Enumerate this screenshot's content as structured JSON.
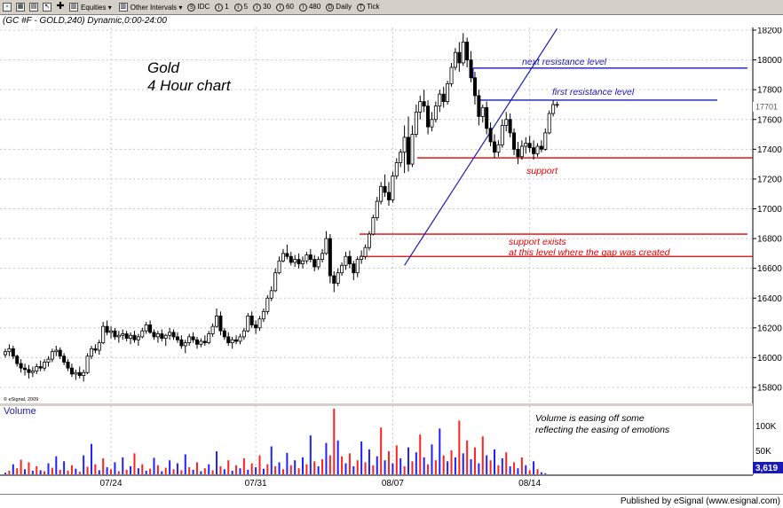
{
  "toolbar": {
    "items": [
      {
        "name": "equities-dropdown",
        "label": "Equities"
      },
      {
        "name": "other-intervals-dropdown",
        "label": "Other Intervals"
      },
      {
        "name": "interval-idc",
        "label": "IDC",
        "badge": "S"
      },
      {
        "name": "interval-1",
        "label": "1",
        "badge": "I"
      },
      {
        "name": "interval-5",
        "label": "5",
        "badge": "I"
      },
      {
        "name": "interval-30",
        "label": "30",
        "badge": "I"
      },
      {
        "name": "interval-60",
        "label": "60",
        "badge": "I"
      },
      {
        "name": "interval-480",
        "label": "480",
        "badge": "I"
      },
      {
        "name": "interval-daily",
        "label": "Daily",
        "badge": "D"
      },
      {
        "name": "interval-tick",
        "label": "Tick",
        "badge": "T"
      }
    ]
  },
  "header": {
    "title": "(GC #F - GOLD,240) Dynamic,0:00-24:00"
  },
  "footer": {
    "publisher": "Published by eSignal (www.esignal.com)"
  },
  "chart_data": {
    "type": "candlestick",
    "title": "Gold",
    "subtitle": "4 Hour chart",
    "copyright": "© eSignal, 2009",
    "last_price": "17701",
    "price_axis": {
      "ylim": [
        15680,
        18250
      ],
      "ticks": [
        "18200",
        "18000",
        "17800",
        "17600",
        "17400",
        "17200",
        "17000",
        "16800",
        "16600",
        "16400",
        "16200",
        "16000",
        "15800"
      ]
    },
    "dates": [
      "07/24",
      "07/31",
      "08/07",
      "08/14"
    ],
    "volume_panel": {
      "label": "Volume",
      "ticks": [
        "100K",
        "50K"
      ],
      "last_value": "3,619",
      "ylim": [
        0,
        150000
      ]
    },
    "horizontal_lines": [
      {
        "name": "next-resistance",
        "label": "next resistance level",
        "price": 17945,
        "color": "#1a1ab8"
      },
      {
        "name": "first-resistance",
        "label": "first resistance level",
        "price": 17730,
        "color": "#1a1ab8"
      },
      {
        "name": "support",
        "label": "support",
        "price": 17342,
        "color": "#e00000"
      },
      {
        "name": "gap-support-upper",
        "label": "",
        "price": 16830,
        "color": "#e00000"
      },
      {
        "name": "gap-support-lower",
        "label": "",
        "price": 16680,
        "color": "#e00000"
      }
    ],
    "annotations": {
      "support_exists": [
        "support exists",
        "at this level where the gap was created"
      ],
      "volume_note": [
        "Volume is easing off some",
        "reflecting the easing of emotions"
      ]
    },
    "trendline": {
      "from_bar": 102,
      "from_price": 16620,
      "to_bar": 141,
      "to_price": 18210,
      "color": "#1a1ab8"
    },
    "bars": [
      [
        16020,
        16060,
        16000,
        16040
      ],
      [
        16040,
        16090,
        16010,
        16060
      ],
      [
        16060,
        16080,
        15990,
        16010
      ],
      [
        16010,
        16020,
        15940,
        15960
      ],
      [
        15960,
        15990,
        15900,
        15930
      ],
      [
        15930,
        15960,
        15880,
        15920
      ],
      [
        15920,
        15950,
        15860,
        15900
      ],
      [
        15900,
        15940,
        15870,
        15910
      ],
      [
        15910,
        15960,
        15890,
        15940
      ],
      [
        15940,
        15980,
        15910,
        15930
      ],
      [
        15930,
        15990,
        15910,
        15970
      ],
      [
        15970,
        16010,
        15940,
        15990
      ],
      [
        15990,
        16060,
        15970,
        16040
      ],
      [
        16040,
        16080,
        16010,
        16050
      ],
      [
        16050,
        16070,
        15990,
        16010
      ],
      [
        16010,
        16030,
        15950,
        15970
      ],
      [
        15970,
        15990,
        15910,
        15930
      ],
      [
        15930,
        15960,
        15870,
        15890
      ],
      [
        15890,
        15920,
        15850,
        15900
      ],
      [
        15900,
        15940,
        15860,
        15880
      ],
      [
        15880,
        15920,
        15840,
        15900
      ],
      [
        15900,
        16030,
        15890,
        16010
      ],
      [
        16010,
        16080,
        15990,
        16060
      ],
      [
        16060,
        16090,
        16030,
        16050
      ],
      [
        16050,
        16120,
        16020,
        16100
      ],
      [
        16100,
        16240,
        16090,
        16210
      ],
      [
        16210,
        16250,
        16150,
        16170
      ],
      [
        16170,
        16210,
        16130,
        16180
      ],
      [
        16180,
        16200,
        16120,
        16140
      ],
      [
        16140,
        16180,
        16100,
        16150
      ],
      [
        16150,
        16190,
        16120,
        16160
      ],
      [
        16160,
        16180,
        16110,
        16130
      ],
      [
        16130,
        16170,
        16090,
        16150
      ],
      [
        16150,
        16180,
        16100,
        16120
      ],
      [
        16120,
        16160,
        16080,
        16140
      ],
      [
        16140,
        16200,
        16130,
        16180
      ],
      [
        16180,
        16240,
        16160,
        16220
      ],
      [
        16220,
        16250,
        16160,
        16170
      ],
      [
        16170,
        16190,
        16120,
        16140
      ],
      [
        16140,
        16180,
        16100,
        16160
      ],
      [
        16160,
        16190,
        16110,
        16130
      ],
      [
        16130,
        16160,
        16080,
        16150
      ],
      [
        16150,
        16200,
        16120,
        16170
      ],
      [
        16170,
        16190,
        16120,
        16140
      ],
      [
        16140,
        16170,
        16100,
        16120
      ],
      [
        16120,
        16150,
        16060,
        16080
      ],
      [
        16080,
        16120,
        16030,
        16100
      ],
      [
        16100,
        16160,
        16080,
        16140
      ],
      [
        16140,
        16170,
        16100,
        16120
      ],
      [
        16120,
        16140,
        16060,
        16090
      ],
      [
        16090,
        16130,
        16070,
        16110
      ],
      [
        16110,
        16150,
        16080,
        16100
      ],
      [
        16100,
        16180,
        16090,
        16160
      ],
      [
        16160,
        16230,
        16140,
        16210
      ],
      [
        16210,
        16330,
        16200,
        16280
      ],
      [
        16280,
        16310,
        16150,
        16180
      ],
      [
        16180,
        16200,
        16120,
        16140
      ],
      [
        16140,
        16170,
        16080,
        16100
      ],
      [
        16100,
        16140,
        16060,
        16120
      ],
      [
        16120,
        16150,
        16090,
        16110
      ],
      [
        16110,
        16160,
        16090,
        16140
      ],
      [
        16140,
        16200,
        16120,
        16180
      ],
      [
        16180,
        16300,
        16170,
        16280
      ],
      [
        16280,
        16310,
        16200,
        16220
      ],
      [
        16220,
        16250,
        16160,
        16200
      ],
      [
        16200,
        16280,
        16180,
        16260
      ],
      [
        16260,
        16330,
        16240,
        16310
      ],
      [
        16310,
        16420,
        16290,
        16400
      ],
      [
        16400,
        16480,
        16380,
        16450
      ],
      [
        16450,
        16600,
        16440,
        16570
      ],
      [
        16570,
        16680,
        16560,
        16650
      ],
      [
        16650,
        16730,
        16640,
        16700
      ],
      [
        16700,
        16760,
        16660,
        16680
      ],
      [
        16680,
        16710,
        16620,
        16640
      ],
      [
        16640,
        16690,
        16610,
        16660
      ],
      [
        16660,
        16700,
        16600,
        16630
      ],
      [
        16630,
        16680,
        16600,
        16650
      ],
      [
        16650,
        16710,
        16630,
        16690
      ],
      [
        16690,
        16730,
        16640,
        16660
      ],
      [
        16660,
        16690,
        16580,
        16610
      ],
      [
        16610,
        16680,
        16590,
        16660
      ],
      [
        16660,
        16730,
        16640,
        16700
      ],
      [
        16700,
        16850,
        16690,
        16800
      ],
      [
        16800,
        16830,
        16500,
        16550
      ],
      [
        16550,
        16580,
        16440,
        16500
      ],
      [
        16500,
        16600,
        16480,
        16570
      ],
      [
        16570,
        16640,
        16550,
        16620
      ],
      [
        16620,
        16710,
        16590,
        16680
      ],
      [
        16680,
        16720,
        16600,
        16630
      ],
      [
        16630,
        16650,
        16520,
        16570
      ],
      [
        16570,
        16680,
        16540,
        16660
      ],
      [
        16660,
        16720,
        16630,
        16680
      ],
      [
        16680,
        16760,
        16660,
        16740
      ],
      [
        16740,
        16850,
        16720,
        16830
      ],
      [
        16830,
        16960,
        16820,
        16940
      ],
      [
        16940,
        17080,
        16920,
        17050
      ],
      [
        17050,
        17180,
        17030,
        17150
      ],
      [
        17150,
        17230,
        17080,
        17110
      ],
      [
        17110,
        17180,
        17020,
        17060
      ],
      [
        17060,
        17250,
        17040,
        17220
      ],
      [
        17220,
        17340,
        17200,
        17310
      ],
      [
        17310,
        17400,
        17280,
        17380
      ],
      [
        17380,
        17560,
        17240,
        17480
      ],
      [
        17480,
        17620,
        17250,
        17300
      ],
      [
        17300,
        17560,
        17280,
        17500
      ],
      [
        17500,
        17700,
        17480,
        17650
      ],
      [
        17650,
        17760,
        17600,
        17720
      ],
      [
        17720,
        17800,
        17650,
        17690
      ],
      [
        17690,
        17730,
        17500,
        17550
      ],
      [
        17550,
        17650,
        17520,
        17600
      ],
      [
        17600,
        17720,
        17580,
        17690
      ],
      [
        17690,
        17800,
        17650,
        17770
      ],
      [
        17770,
        17820,
        17680,
        17720
      ],
      [
        17720,
        17860,
        17700,
        17840
      ],
      [
        17840,
        17980,
        17820,
        17950
      ],
      [
        17950,
        18080,
        17930,
        18050
      ],
      [
        18050,
        18120,
        17920,
        17980
      ],
      [
        17980,
        18180,
        17960,
        18120
      ],
      [
        18120,
        18150,
        17950,
        18000
      ],
      [
        18000,
        18060,
        17850,
        17880
      ],
      [
        17880,
        17920,
        17700,
        17760
      ],
      [
        17760,
        17800,
        17560,
        17620
      ],
      [
        17620,
        17700,
        17580,
        17680
      ],
      [
        17680,
        17720,
        17500,
        17540
      ],
      [
        17540,
        17580,
        17420,
        17450
      ],
      [
        17450,
        17500,
        17340,
        17380
      ],
      [
        17380,
        17460,
        17350,
        17430
      ],
      [
        17430,
        17600,
        17410,
        17560
      ],
      [
        17560,
        17650,
        17520,
        17600
      ],
      [
        17600,
        17640,
        17480,
        17510
      ],
      [
        17510,
        17540,
        17360,
        17400
      ],
      [
        17400,
        17450,
        17300,
        17350
      ],
      [
        17350,
        17460,
        17330,
        17420
      ],
      [
        17420,
        17480,
        17370,
        17440
      ],
      [
        17440,
        17490,
        17380,
        17410
      ],
      [
        17410,
        17460,
        17330,
        17370
      ],
      [
        17370,
        17440,
        17350,
        17420
      ],
      [
        17420,
        17460,
        17380,
        17400
      ],
      [
        17400,
        17540,
        17390,
        17510
      ],
      [
        17510,
        17660,
        17500,
        17640
      ],
      [
        17640,
        17730,
        17620,
        17700
      ],
      [
        17700,
        17720,
        17680,
        17701
      ]
    ],
    "volume": [
      [
        5000,
        "b"
      ],
      [
        9000,
        "r"
      ],
      [
        22000,
        "b"
      ],
      [
        14000,
        "r"
      ],
      [
        31000,
        "r"
      ],
      [
        12000,
        "b"
      ],
      [
        26000,
        "r"
      ],
      [
        9000,
        "b"
      ],
      [
        18000,
        "r"
      ],
      [
        10000,
        "b"
      ],
      [
        8000,
        "r"
      ],
      [
        24000,
        "b"
      ],
      [
        15000,
        "r"
      ],
      [
        38000,
        "b"
      ],
      [
        11000,
        "r"
      ],
      [
        28000,
        "b"
      ],
      [
        9000,
        "r"
      ],
      [
        20000,
        "r"
      ],
      [
        13000,
        "b"
      ],
      [
        7000,
        "r"
      ],
      [
        40000,
        "b"
      ],
      [
        17000,
        "r"
      ],
      [
        63000,
        "b"
      ],
      [
        22000,
        "r"
      ],
      [
        10000,
        "b"
      ],
      [
        34000,
        "r"
      ],
      [
        16000,
        "b"
      ],
      [
        12000,
        "r"
      ],
      [
        26000,
        "b"
      ],
      [
        8000,
        "r"
      ],
      [
        36000,
        "b"
      ],
      [
        11000,
        "r"
      ],
      [
        18000,
        "b"
      ],
      [
        44000,
        "r"
      ],
      [
        14000,
        "b"
      ],
      [
        22000,
        "r"
      ],
      [
        9000,
        "b"
      ],
      [
        13000,
        "r"
      ],
      [
        35000,
        "b"
      ],
      [
        20000,
        "r"
      ],
      [
        8000,
        "b"
      ],
      [
        15000,
        "r"
      ],
      [
        30000,
        "b"
      ],
      [
        12000,
        "r"
      ],
      [
        24000,
        "b"
      ],
      [
        10000,
        "r"
      ],
      [
        42000,
        "b"
      ],
      [
        16000,
        "r"
      ],
      [
        11000,
        "b"
      ],
      [
        26000,
        "r"
      ],
      [
        8000,
        "b"
      ],
      [
        14000,
        "r"
      ],
      [
        22000,
        "b"
      ],
      [
        10000,
        "r"
      ],
      [
        48000,
        "b"
      ],
      [
        18000,
        "r"
      ],
      [
        12000,
        "b"
      ],
      [
        30000,
        "r"
      ],
      [
        9000,
        "b"
      ],
      [
        20000,
        "r"
      ],
      [
        14000,
        "b"
      ],
      [
        34000,
        "r"
      ],
      [
        11000,
        "b"
      ],
      [
        24000,
        "r"
      ],
      [
        16000,
        "b"
      ],
      [
        40000,
        "r"
      ],
      [
        13000,
        "b"
      ],
      [
        22000,
        "r"
      ],
      [
        58000,
        "b"
      ],
      [
        18000,
        "r"
      ],
      [
        26000,
        "b"
      ],
      [
        12000,
        "r"
      ],
      [
        45000,
        "b"
      ],
      [
        20000,
        "r"
      ],
      [
        30000,
        "b"
      ],
      [
        14000,
        "r"
      ],
      [
        36000,
        "b"
      ],
      [
        22000,
        "r"
      ],
      [
        80000,
        "b"
      ],
      [
        28000,
        "r"
      ],
      [
        18000,
        "b"
      ],
      [
        32000,
        "r"
      ],
      [
        65000,
        "b"
      ],
      [
        40000,
        "r"
      ],
      [
        134000,
        "r"
      ],
      [
        70000,
        "b"
      ],
      [
        38000,
        "r"
      ],
      [
        24000,
        "b"
      ],
      [
        44000,
        "r"
      ],
      [
        18000,
        "b"
      ],
      [
        30000,
        "r"
      ],
      [
        68000,
        "b"
      ],
      [
        26000,
        "r"
      ],
      [
        52000,
        "b"
      ],
      [
        20000,
        "r"
      ],
      [
        38000,
        "b"
      ],
      [
        96000,
        "r"
      ],
      [
        30000,
        "b"
      ],
      [
        48000,
        "r"
      ],
      [
        24000,
        "b"
      ],
      [
        60000,
        "r"
      ],
      [
        34000,
        "b"
      ],
      [
        18000,
        "r"
      ],
      [
        56000,
        "b"
      ],
      [
        28000,
        "r"
      ],
      [
        46000,
        "b"
      ],
      [
        82000,
        "r"
      ],
      [
        36000,
        "b"
      ],
      [
        22000,
        "r"
      ],
      [
        62000,
        "b"
      ],
      [
        30000,
        "r"
      ],
      [
        94000,
        "b"
      ],
      [
        40000,
        "r"
      ],
      [
        28000,
        "b"
      ],
      [
        50000,
        "r"
      ],
      [
        36000,
        "b"
      ],
      [
        110000,
        "r"
      ],
      [
        44000,
        "b"
      ],
      [
        70000,
        "r"
      ],
      [
        32000,
        "b"
      ],
      [
        56000,
        "r"
      ],
      [
        24000,
        "b"
      ],
      [
        78000,
        "r"
      ],
      [
        40000,
        "b"
      ],
      [
        30000,
        "r"
      ],
      [
        52000,
        "b"
      ],
      [
        20000,
        "r"
      ],
      [
        34000,
        "b"
      ],
      [
        46000,
        "r"
      ],
      [
        18000,
        "b"
      ],
      [
        26000,
        "r"
      ],
      [
        14000,
        "b"
      ],
      [
        36000,
        "r"
      ],
      [
        20000,
        "b"
      ],
      [
        10000,
        "r"
      ],
      [
        28000,
        "b"
      ],
      [
        12000,
        "r"
      ],
      [
        6000,
        "b"
      ],
      [
        4000,
        "b"
      ]
    ]
  }
}
